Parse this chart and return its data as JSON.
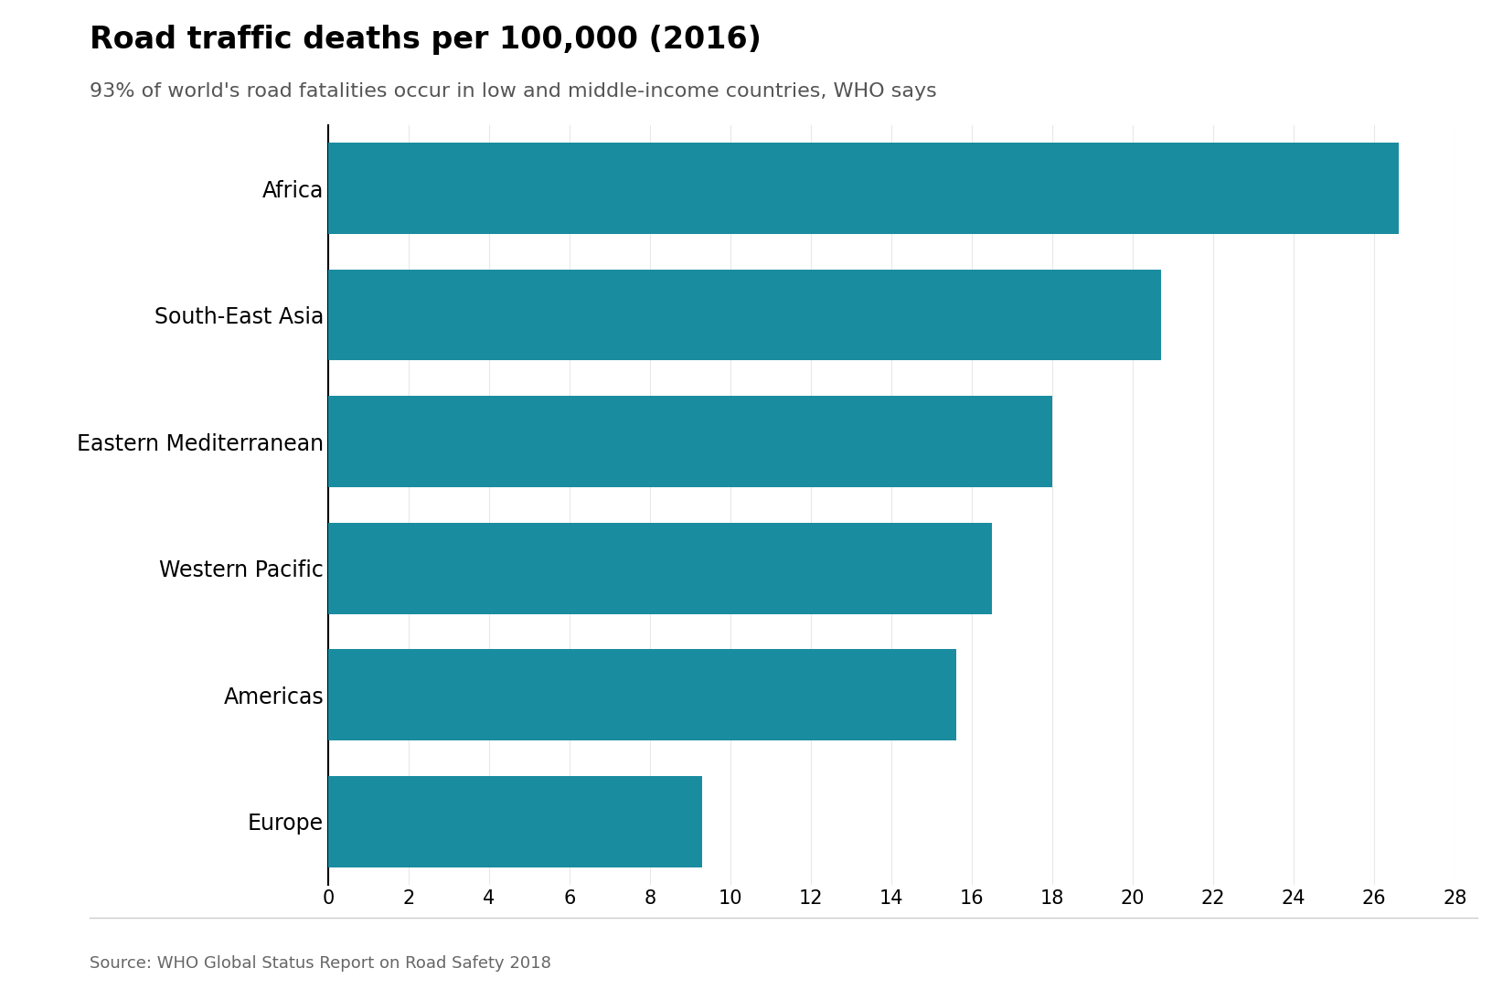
{
  "title": "Road traffic deaths per 100,000 (2016)",
  "subtitle": "93% of world's road fatalities occur in low and middle-income countries, WHO says",
  "categories": [
    "Africa",
    "South-East Asia",
    "Eastern Mediterranean",
    "Western Pacific",
    "Americas",
    "Europe"
  ],
  "values": [
    26.6,
    20.7,
    18.0,
    16.5,
    15.6,
    9.3
  ],
  "bar_color": "#1a8ca0",
  "background_color": "#ffffff",
  "xlim": [
    0,
    28
  ],
  "xticks": [
    0,
    2,
    4,
    6,
    8,
    10,
    12,
    14,
    16,
    18,
    20,
    22,
    24,
    26,
    28
  ],
  "source_text": "Source: WHO Global Status Report on Road Safety 2018",
  "title_fontsize": 24,
  "subtitle_fontsize": 16,
  "tick_fontsize": 15,
  "label_fontsize": 17,
  "source_fontsize": 13,
  "bar_height": 0.72
}
